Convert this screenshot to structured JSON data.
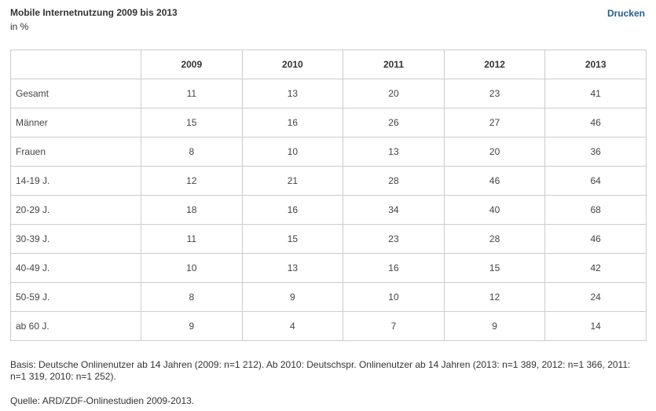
{
  "header": {
    "title": "Mobile Internetnutzung 2009 bis 2013",
    "subtitle": "in %",
    "print_label": "Drucken"
  },
  "chart_data": {
    "type": "table",
    "title": "Mobile Internetnutzung 2009 bis 2013",
    "unit": "in %",
    "columns": [
      "2009",
      "2010",
      "2011",
      "2012",
      "2013"
    ],
    "rows": [
      {
        "label": "Gesamt",
        "values": [
          "11",
          "13",
          "20",
          "23",
          "41"
        ]
      },
      {
        "label": "Männer",
        "values": [
          "15",
          "16",
          "26",
          "27",
          "46"
        ]
      },
      {
        "label": "Frauen",
        "values": [
          "8",
          "10",
          "13",
          "20",
          "36"
        ]
      },
      {
        "label": "14-19 J.",
        "values": [
          "12",
          "21",
          "28",
          "46",
          "64"
        ]
      },
      {
        "label": "20-29 J.",
        "values": [
          "18",
          "16",
          "34",
          "40",
          "68"
        ]
      },
      {
        "label": "30-39 J.",
        "values": [
          "11",
          "15",
          "23",
          "28",
          "46"
        ]
      },
      {
        "label": "40-49 J.",
        "values": [
          "10",
          "13",
          "16",
          "15",
          "42"
        ]
      },
      {
        "label": "50-59 J.",
        "values": [
          "8",
          "9",
          "10",
          "12",
          "24"
        ]
      },
      {
        "label": "ab 60 J.",
        "values": [
          "9",
          "4",
          "7",
          "9",
          "14"
        ]
      }
    ]
  },
  "footer": {
    "basis": "Basis: Deutsche Onlinenutzer ab 14 Jahren (2009: n=1 212). Ab 2010: Deutschspr. Onlinenutzer ab 14 Jahren (2013: n=1 389, 2012: n=1 366, 2011: n=1 319, 2010: n=1 252).",
    "source": "Quelle: ARD/ZDF-Onlinestudien 2009-2013."
  }
}
